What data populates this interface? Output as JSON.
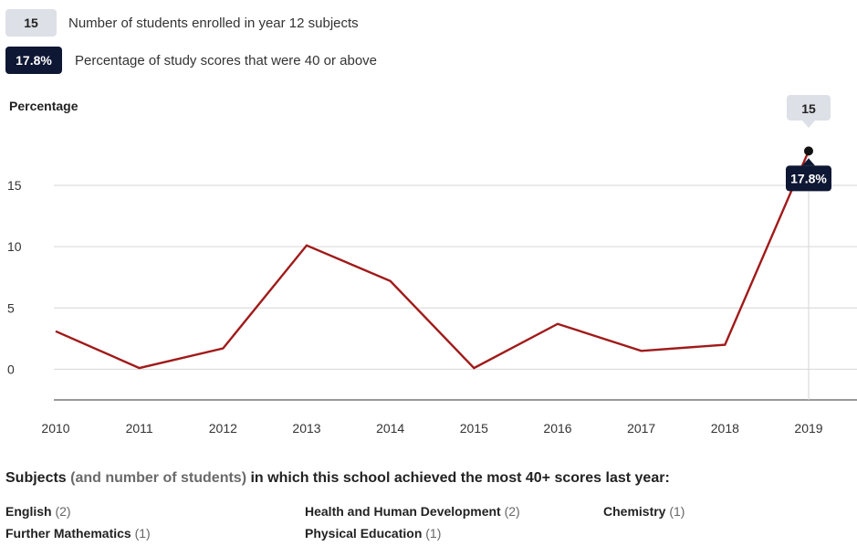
{
  "legend": {
    "students": {
      "badge": "15",
      "label": "Number of students enrolled in year 12 subjects"
    },
    "percentage": {
      "badge": "17.8%",
      "label": "Percentage of study scores that were 40 or above"
    }
  },
  "chart_data": {
    "type": "line",
    "ylabel": "Percentage",
    "xlabel": "",
    "title": "",
    "categories": [
      "2010",
      "2011",
      "2012",
      "2013",
      "2014",
      "2015",
      "2016",
      "2017",
      "2018",
      "2019"
    ],
    "series": [
      {
        "values": [
          3.1,
          0.1,
          1.7,
          10.1,
          7.2,
          0.1,
          3.7,
          1.5,
          2.0,
          17.8
        ]
      }
    ],
    "ylim": [
      -2.5,
      18.5
    ],
    "yticks": [
      0,
      5,
      10,
      15
    ],
    "grid": true,
    "color": "#a11a1a",
    "highlight": {
      "index": 9,
      "students_label": "15",
      "percentage_label": "17.8%"
    }
  },
  "subjects": {
    "title_bold": "Subjects",
    "title_muted": "(and number of students)",
    "title_rest": "in which this school achieved the most 40+ scores last year:",
    "items": [
      {
        "name": "English",
        "count": "(2)"
      },
      {
        "name": "Health and Human Development",
        "count": "(2)"
      },
      {
        "name": "Chemistry",
        "count": "(1)"
      },
      {
        "name": "Further Mathematics",
        "count": "(1)"
      },
      {
        "name": "Physical Education",
        "count": "(1)"
      }
    ]
  }
}
